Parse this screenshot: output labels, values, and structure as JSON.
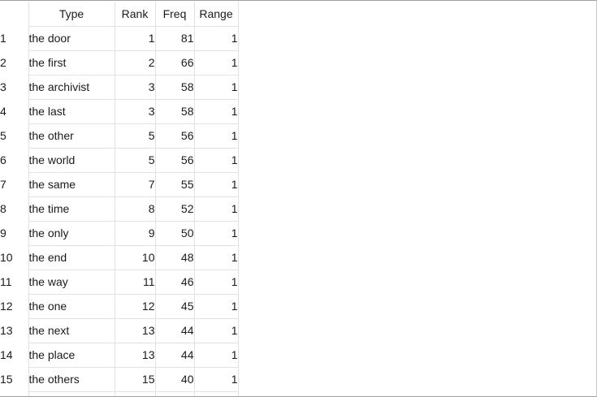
{
  "table": {
    "columns": [
      "",
      "Type",
      "Rank",
      "Freq",
      "Range"
    ],
    "rows": [
      {
        "index": "1",
        "type": "the door",
        "rank": "1",
        "freq": "81",
        "range": "1"
      },
      {
        "index": "2",
        "type": "the first",
        "rank": "2",
        "freq": "66",
        "range": "1"
      },
      {
        "index": "3",
        "type": "the archivist",
        "rank": "3",
        "freq": "58",
        "range": "1"
      },
      {
        "index": "4",
        "type": "the last",
        "rank": "3",
        "freq": "58",
        "range": "1"
      },
      {
        "index": "5",
        "type": "the other",
        "rank": "5",
        "freq": "56",
        "range": "1"
      },
      {
        "index": "6",
        "type": "the world",
        "rank": "5",
        "freq": "56",
        "range": "1"
      },
      {
        "index": "7",
        "type": "the same",
        "rank": "7",
        "freq": "55",
        "range": "1"
      },
      {
        "index": "8",
        "type": "the time",
        "rank": "8",
        "freq": "52",
        "range": "1"
      },
      {
        "index": "9",
        "type": "the only",
        "rank": "9",
        "freq": "50",
        "range": "1"
      },
      {
        "index": "10",
        "type": "the end",
        "rank": "10",
        "freq": "48",
        "range": "1"
      },
      {
        "index": "11",
        "type": "the way",
        "rank": "11",
        "freq": "46",
        "range": "1"
      },
      {
        "index": "12",
        "type": "the one",
        "rank": "12",
        "freq": "45",
        "range": "1"
      },
      {
        "index": "13",
        "type": "the next",
        "rank": "13",
        "freq": "44",
        "range": "1"
      },
      {
        "index": "14",
        "type": "the place",
        "rank": "13",
        "freq": "44",
        "range": "1"
      },
      {
        "index": "15",
        "type": "the others",
        "rank": "15",
        "freq": "40",
        "range": "1"
      }
    ]
  },
  "colors": {
    "grid_line": "#e2e2e2",
    "frame_border": "#a0a0a0",
    "background": "#ffffff",
    "text": "#1a1a1a"
  }
}
